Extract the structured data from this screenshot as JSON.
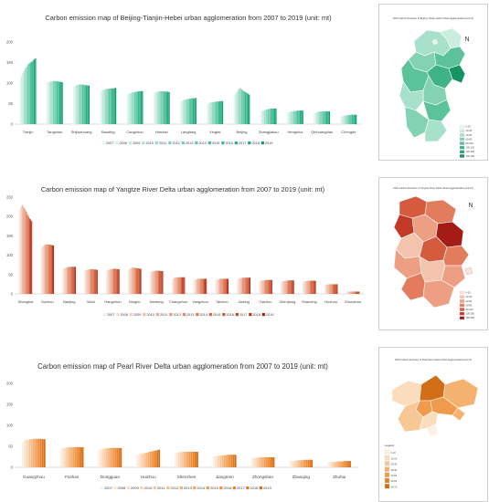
{
  "chart_data": [
    {
      "type": "bar",
      "title": "Carbon emission map of Beijing-Tianjin-Hebei urban agglomeration from 2007 to 2019 (unit: mt)",
      "categories": [
        "Tianjin",
        "Tangshan",
        "Shijiazhuang",
        "Baoding",
        "Cangzhou",
        "Handan",
        "Langfang",
        "Xingtai",
        "Beijing",
        "Zhangjiakou",
        "Hengshui",
        "Qinhuangdao",
        "Chengde"
      ],
      "years": [
        "2007",
        "2008",
        "2009",
        "2010",
        "2011",
        "2012",
        "2013",
        "2014",
        "2015",
        "2016",
        "2017",
        "2018",
        "2019"
      ],
      "ylim": [
        0,
        200
      ],
      "yticks": [
        0,
        50,
        100,
        150,
        200
      ],
      "legend_position": "bottom",
      "grid": false,
      "values": [
        [
          112,
          118,
          124,
          130,
          135,
          140,
          145,
          148,
          150,
          152,
          155,
          158,
          160
        ],
        [
          100,
          102,
          103,
          104,
          104,
          105,
          105,
          105,
          104,
          104,
          103,
          103,
          102
        ],
        [
          92,
          94,
          95,
          96,
          96,
          97,
          97,
          96,
          96,
          95,
          95,
          94,
          94
        ],
        [
          80,
          82,
          83,
          84,
          85,
          86,
          86,
          86,
          87,
          87,
          87,
          88,
          88
        ],
        [
          72,
          74,
          75,
          76,
          77,
          78,
          78,
          79,
          79,
          80,
          80,
          80,
          81
        ],
        [
          76,
          77,
          78,
          79,
          79,
          80,
          80,
          80,
          80,
          79,
          79,
          79,
          78
        ],
        [
          55,
          57,
          58,
          59,
          60,
          61,
          61,
          62,
          62,
          63,
          63,
          63,
          64
        ],
        [
          50,
          51,
          52,
          53,
          53,
          54,
          54,
          55,
          55,
          55,
          56,
          56,
          56
        ],
        [
          70,
          74,
          78,
          82,
          86,
          88,
          85,
          82,
          80,
          78,
          76,
          74,
          72
        ],
        [
          30,
          32,
          33,
          34,
          35,
          36,
          37,
          37,
          38,
          38,
          38,
          38,
          38
        ],
        [
          28,
          29,
          30,
          31,
          31,
          32,
          32,
          32,
          33,
          33,
          33,
          33,
          33
        ],
        [
          27,
          28,
          29,
          30,
          30,
          31,
          31,
          31,
          31,
          31,
          31,
          31,
          31
        ],
        [
          18,
          19,
          20,
          21,
          21,
          22,
          22,
          22,
          23,
          23,
          23,
          23,
          23
        ]
      ],
      "colors": [
        "#e6f7f1",
        "#d2f0e6",
        "#bfe9db",
        "#abe2d0",
        "#98dbc5",
        "#84d4ba",
        "#71cdaf",
        "#5dc6a4",
        "#4abf99",
        "#36b88e",
        "#23b183",
        "#1aa679",
        "#129b70"
      ]
    },
    {
      "type": "bar",
      "title": "Carbon emission map of Yangtze River Delta urban agglomeration from 2007 to 2019 (unit: mt)",
      "categories": [
        "Shanghai",
        "Suzhou",
        "Nanjing",
        "Wuxi",
        "Hangzhou",
        "Ningbo",
        "Nantong",
        "Changzhou",
        "Yangzhou",
        "Taizhou",
        "Jiaxing",
        "Taizhou",
        "Zhenjiang",
        "Shaoxing",
        "Huzhou",
        "Zhoushan"
      ],
      "years": [
        "2007",
        "2008",
        "2009",
        "2010",
        "2011",
        "2012",
        "2013",
        "2014",
        "2015",
        "2016",
        "2017",
        "2018",
        "2019"
      ],
      "ylim": [
        0,
        250
      ],
      "yticks": [
        0,
        50,
        100,
        150,
        200,
        250
      ],
      "legend_position": "bottom",
      "grid": false,
      "values": [
        [
          215,
          222,
          228,
          230,
          226,
          222,
          218,
          212,
          205,
          200,
          195,
          192,
          188
        ],
        [
          118,
          121,
          124,
          126,
          127,
          128,
          128,
          128,
          127,
          127,
          126,
          126,
          125
        ],
        [
          64,
          66,
          67,
          68,
          69,
          69,
          70,
          70,
          70,
          70,
          70,
          70,
          70
        ],
        [
          60,
          61,
          62,
          63,
          63,
          64,
          64,
          64,
          64,
          63,
          63,
          63,
          62
        ],
        [
          60,
          61,
          62,
          63,
          64,
          64,
          65,
          65,
          65,
          65,
          64,
          64,
          64
        ],
        [
          62,
          64,
          66,
          67,
          68,
          68,
          68,
          67,
          67,
          66,
          66,
          65,
          65
        ],
        [
          56,
          57,
          58,
          59,
          59,
          60,
          60,
          60,
          60,
          60,
          59,
          59,
          59
        ],
        [
          38,
          40,
          41,
          42,
          42,
          43,
          43,
          43,
          43,
          43,
          43,
          43,
          43
        ],
        [
          36,
          37,
          38,
          38,
          39,
          39,
          39,
          39,
          39,
          39,
          39,
          39,
          39
        ],
        [
          36,
          37,
          38,
          38,
          39,
          39,
          39,
          39,
          39,
          39,
          39,
          39,
          39
        ],
        [
          38,
          39,
          40,
          41,
          41,
          42,
          42,
          42,
          42,
          42,
          42,
          42,
          42
        ],
        [
          33,
          34,
          34,
          35,
          35,
          35,
          36,
          36,
          36,
          36,
          36,
          36,
          36
        ],
        [
          31,
          32,
          33,
          33,
          34,
          34,
          34,
          35,
          35,
          35,
          35,
          35,
          35
        ],
        [
          31,
          32,
          32,
          33,
          33,
          34,
          34,
          34,
          34,
          34,
          34,
          34,
          34
        ],
        [
          22,
          23,
          24,
          24,
          25,
          25,
          25,
          25,
          25,
          25,
          25,
          25,
          25
        ],
        [
          6,
          6,
          6,
          6,
          6,
          6,
          6,
          6,
          6,
          6,
          6,
          6,
          6
        ]
      ],
      "colors": [
        "#fbe8e1",
        "#f7d9cd",
        "#f3c9b9",
        "#efb9a5",
        "#eba991",
        "#e6997d",
        "#e28969",
        "#de7955",
        "#d96741",
        "#d5552e",
        "#c8431f",
        "#b93218",
        "#a82214"
      ]
    },
    {
      "type": "bar",
      "title": "Carbon emission map of Pearl River Delta urban agglomeration from 2007 to 2019 (unit: mt)",
      "categories": [
        "Guangzhou",
        "Foshan",
        "Dongguan",
        "Huizhou",
        "Shenzhen",
        "Jiangmen",
        "Zhongshan",
        "Zhaoqing",
        "Zhuhai"
      ],
      "years": [
        "2007",
        "2008",
        "2009",
        "2010",
        "2011",
        "2012",
        "2013",
        "2014",
        "2015",
        "2016",
        "2017",
        "2018",
        "2019"
      ],
      "ylim": [
        0,
        200
      ],
      "yticks": [
        0,
        50,
        100,
        150,
        200
      ],
      "legend_position": "bottom",
      "grid": false,
      "values": [
        [
          60,
          63,
          65,
          66,
          67,
          67,
          68,
          68,
          68,
          68,
          68,
          67,
          67
        ],
        [
          44,
          45,
          46,
          47,
          48,
          48,
          48,
          48,
          48,
          48,
          48,
          48,
          48
        ],
        [
          42,
          43,
          44,
          45,
          45,
          46,
          46,
          46,
          46,
          46,
          46,
          46,
          46
        ],
        [
          30,
          31,
          32,
          33,
          34,
          35,
          36,
          37,
          38,
          39,
          40,
          41,
          42
        ],
        [
          34,
          35,
          36,
          36,
          37,
          37,
          37,
          37,
          37,
          37,
          37,
          37,
          37
        ],
        [
          26,
          27,
          27,
          28,
          28,
          29,
          29,
          29,
          30,
          30,
          30,
          30,
          30
        ],
        [
          22,
          22,
          23,
          23,
          23,
          24,
          24,
          24,
          24,
          24,
          24,
          24,
          24
        ],
        [
          14,
          15,
          15,
          16,
          16,
          17,
          17,
          17,
          18,
          18,
          18,
          18,
          18
        ],
        [
          12,
          12,
          13,
          13,
          13,
          14,
          14,
          14,
          14,
          15,
          15,
          15,
          15
        ]
      ],
      "colors": [
        "#fdf0e1",
        "#fce6cf",
        "#fadbbc",
        "#f9d0a9",
        "#f7c596",
        "#f6ba83",
        "#f4af70",
        "#f3a45e",
        "#f1994b",
        "#ef8e38",
        "#ea8329",
        "#de7820",
        "#d26d18"
      ]
    }
  ],
  "maps": [
    {
      "title": "2019 Carbon Emission of Beijing-Tianjin-Hebei Urban Agglomeration(unit:mt)",
      "north": "N",
      "legend": [
        "0-20",
        "20-40",
        "40-60",
        "60-80",
        "80-100",
        "100-120",
        "120-140",
        "140-160"
      ],
      "colors": [
        "#e6f7f1",
        "#c9eedf",
        "#a7e1cb",
        "#82d2b3",
        "#5cc29b",
        "#3fb387",
        "#27a374",
        "#159363"
      ]
    },
    {
      "title": "2019 Carbon Emission of Yangtze River Delta Urban Agglomeration(unit:mt)",
      "north": "N",
      "legend": [
        "0-20",
        "20-40",
        "40-60",
        "60-80",
        "80-100",
        "100-150",
        "150-200"
      ],
      "colors": [
        "#fbe3d8",
        "#f4c3ae",
        "#ec9f82",
        "#e27c5d",
        "#d55a3e",
        "#c23926",
        "#a51c17"
      ]
    },
    {
      "title": "2019 Carbon Emission of Pearl River Delta Urban Agglomeration(unit:mt)",
      "north": "",
      "legend_title": "Legend",
      "legend": [
        "0-10",
        "10-20",
        "20-30",
        "30-40",
        "40-50",
        "50-60",
        "60-70"
      ],
      "colors": [
        "#fdf0e1",
        "#fbdcbc",
        "#f8c796",
        "#f5b170",
        "#f09a4c",
        "#e5822e",
        "#d26d18"
      ]
    }
  ]
}
